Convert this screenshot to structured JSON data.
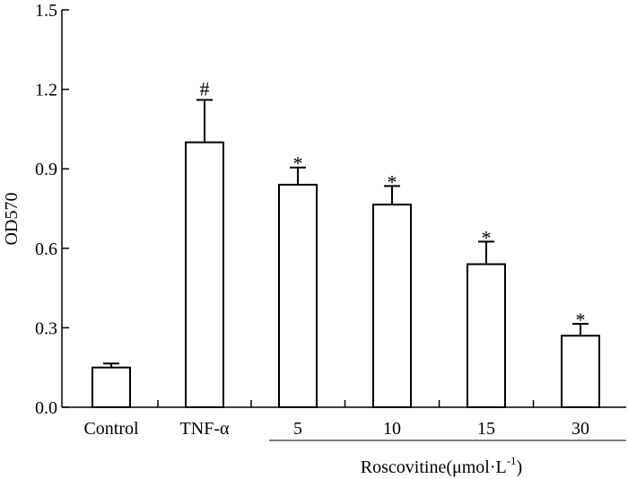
{
  "chart_data": {
    "type": "bar",
    "title": "",
    "xlabel": "",
    "ylabel": "OD570",
    "ylim": [
      0,
      1.5
    ],
    "yticks": [
      "0.0",
      "0.3",
      "0.6",
      "0.9",
      "1.2",
      "1.5"
    ],
    "grid": false,
    "categories": [
      "Control",
      "TNF-α",
      "5",
      "10",
      "15",
      "30"
    ],
    "values": [
      0.15,
      1.0,
      0.84,
      0.765,
      0.54,
      0.27
    ],
    "errors": [
      0.015,
      0.16,
      0.065,
      0.07,
      0.085,
      0.045
    ],
    "markers": [
      "",
      "#",
      "*",
      "*",
      "*",
      "*"
    ],
    "bar_fill": "#ffffff",
    "bar_stroke": "#000000",
    "group_label": {
      "text": "Roscovitine(μmol·L",
      "superscript": "-1",
      "suffix": ")",
      "start_category": 2,
      "end_category": 5
    }
  }
}
